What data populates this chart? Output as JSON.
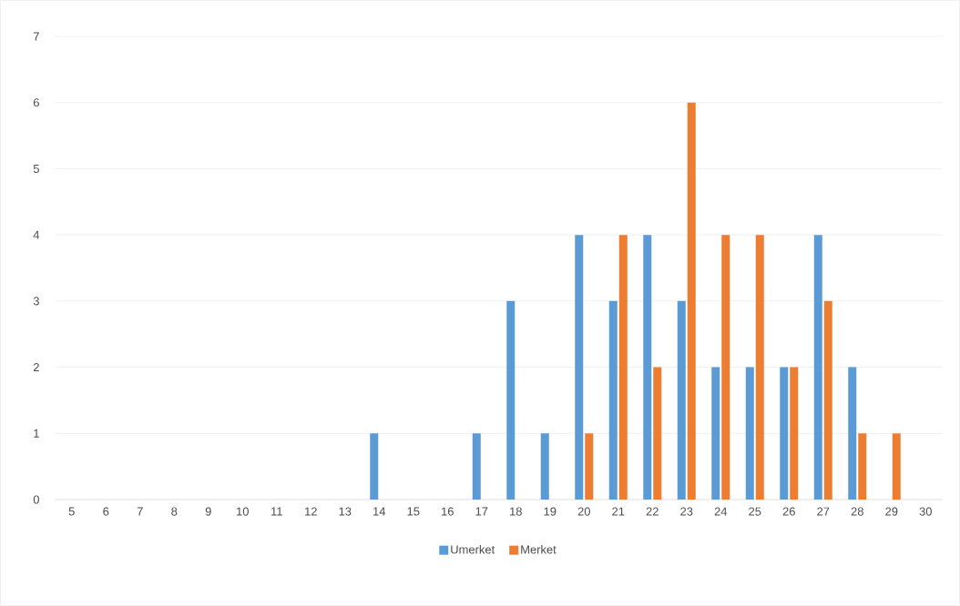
{
  "chart_data": {
    "type": "bar",
    "categories": [
      "5",
      "6",
      "7",
      "8",
      "9",
      "10",
      "11",
      "12",
      "13",
      "14",
      "15",
      "16",
      "17",
      "18",
      "19",
      "20",
      "21",
      "22",
      "23",
      "24",
      "25",
      "26",
      "27",
      "28",
      "29",
      "30"
    ],
    "series": [
      {
        "name": "Umerket",
        "color": "#5b9bd5",
        "values": [
          0,
          0,
          0,
          0,
          0,
          0,
          0,
          0,
          0,
          1,
          0,
          0,
          1,
          3,
          1,
          4,
          3,
          4,
          3,
          2,
          2,
          2,
          4,
          2,
          0,
          0
        ]
      },
      {
        "name": "Merket",
        "color": "#ed7d31",
        "values": [
          0,
          0,
          0,
          0,
          0,
          0,
          0,
          0,
          0,
          0,
          0,
          0,
          0,
          0,
          0,
          1,
          4,
          2,
          6,
          4,
          4,
          2,
          3,
          1,
          1,
          0
        ]
      }
    ],
    "ylim": [
      0,
      7
    ],
    "yticks": [
      0,
      1,
      2,
      3,
      4,
      5,
      6,
      7
    ],
    "grid": "y",
    "legend": "bottom"
  }
}
